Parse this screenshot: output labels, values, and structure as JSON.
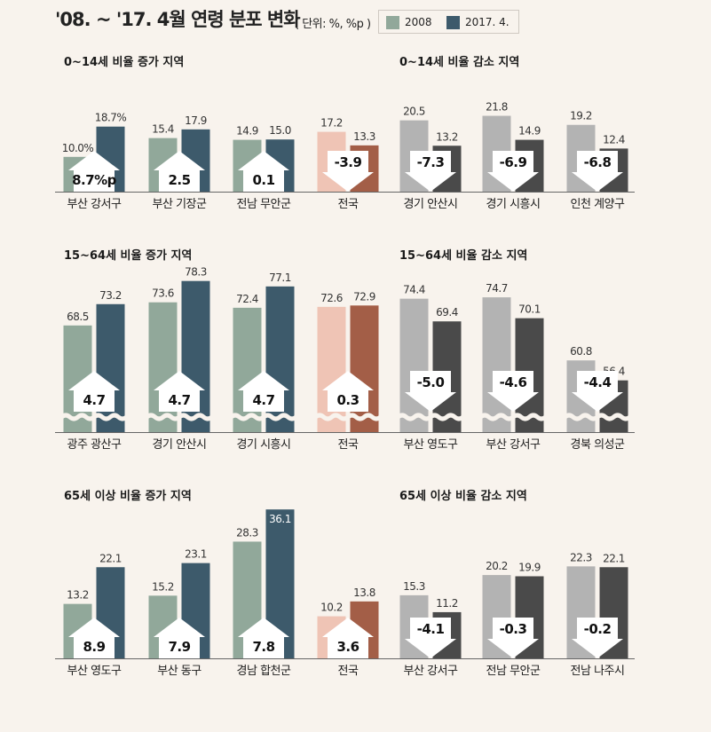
{
  "header": {
    "title": "'08. ~ '17. 4월 연령 분포 변화",
    "unit": "( 단위: %, %p )"
  },
  "legend": [
    {
      "label": "2008",
      "color": "#91a89a"
    },
    {
      "label": "2017. 4.",
      "color": "#3d5a6b"
    }
  ],
  "colors": {
    "increase_2008": "#91a89a",
    "increase_2017": "#3d5a6b",
    "national_2008": "#efc4b5",
    "national_2017": "#a35e47",
    "decrease_2008": "#b3b3b3",
    "decrease_2017": "#4a4a4a"
  },
  "chart_data": [
    {
      "type": "bar",
      "row_titles": [
        "0~14세 비율 증가 지역",
        "0~14세 비율 감소 지역"
      ],
      "series": [
        {
          "name": "2008"
        },
        {
          "name": "2017. 4."
        }
      ],
      "categories": [
        "부산 강서구",
        "부산 기장군",
        "전남 무안군",
        "전국",
        "경기 안산시",
        "경기 시흥시",
        "인천 계양구"
      ],
      "groups": [
        "increase",
        "increase",
        "increase",
        "national",
        "decrease",
        "decrease",
        "decrease"
      ],
      "values_2008": [
        10.0,
        15.4,
        14.9,
        17.2,
        20.5,
        21.8,
        19.2
      ],
      "values_2017": [
        18.7,
        17.9,
        15.0,
        13.3,
        13.2,
        14.9,
        12.4
      ],
      "labels_2008": [
        "10.0%",
        "15.4",
        "14.9",
        "17.2",
        "20.5",
        "21.8",
        "19.2"
      ],
      "labels_2017": [
        "18.7%",
        "17.9",
        "15.0",
        "13.3",
        "13.2",
        "14.9",
        "12.4"
      ],
      "change": [
        "8.7%p",
        "2.5",
        "0.1",
        "-3.9",
        "-7.3",
        "-6.9",
        "-6.8"
      ],
      "direction": [
        "up",
        "up",
        "up",
        "down",
        "down",
        "down",
        "down"
      ],
      "axis_break": false,
      "ylim": [
        0,
        25
      ]
    },
    {
      "type": "bar",
      "row_titles": [
        "15~64세 비율 증가 지역",
        "15~64세 비율 감소 지역"
      ],
      "series": [
        {
          "name": "2008"
        },
        {
          "name": "2017. 4."
        }
      ],
      "categories": [
        "광주 광산구",
        "경기 안산시",
        "경기 시흥시",
        "전국",
        "부산 영도구",
        "부산 강서구",
        "경북 의성군"
      ],
      "groups": [
        "increase",
        "increase",
        "increase",
        "national",
        "decrease",
        "decrease",
        "decrease"
      ],
      "values_2008": [
        68.5,
        73.6,
        72.4,
        72.6,
        74.4,
        74.7,
        60.8
      ],
      "values_2017": [
        73.2,
        78.3,
        77.1,
        72.9,
        69.4,
        70.1,
        56.4
      ],
      "labels_2008": [
        "68.5",
        "73.6",
        "72.4",
        "72.6",
        "74.4",
        "74.7",
        "60.8"
      ],
      "labels_2017": [
        "73.2",
        "78.3",
        "77.1",
        "72.9",
        "69.4",
        "70.1",
        "56.4"
      ],
      "change": [
        "4.7",
        "4.7",
        "4.7",
        "0.3",
        "-5.0",
        "-4.6",
        "-4.4"
      ],
      "direction": [
        "up",
        "up",
        "up",
        "up",
        "down",
        "down",
        "down"
      ],
      "axis_break": true,
      "ylim": [
        45,
        80
      ]
    },
    {
      "type": "bar",
      "row_titles": [
        "65세 이상 비율 증가 지역",
        "65세 이상 비율 감소 지역"
      ],
      "series": [
        {
          "name": "2008"
        },
        {
          "name": "2017. 4."
        }
      ],
      "categories": [
        "부산 영도구",
        "부산 동구",
        "경남 합천군",
        "전국",
        "부산 강서구",
        "전남 무안군",
        "전남 나주시"
      ],
      "groups": [
        "increase",
        "increase",
        "increase",
        "national",
        "decrease",
        "decrease",
        "decrease"
      ],
      "values_2008": [
        13.2,
        15.2,
        28.3,
        10.2,
        15.3,
        20.2,
        22.3
      ],
      "values_2017": [
        22.1,
        23.1,
        36.1,
        13.8,
        11.2,
        19.9,
        22.1
      ],
      "labels_2008": [
        "13.2",
        "15.2",
        "28.3",
        "10.2",
        "15.3",
        "20.2",
        "22.3"
      ],
      "labels_2017": [
        "22.1",
        "23.1",
        "36.1",
        "13.8",
        "11.2",
        "19.9",
        "22.1"
      ],
      "change": [
        "8.9",
        "7.9",
        "7.8",
        "3.6",
        "-4.1",
        "-0.3",
        "-0.2"
      ],
      "direction": [
        "up",
        "up",
        "up",
        "up",
        "down",
        "down",
        "down"
      ],
      "axis_break": false,
      "ylim": [
        0,
        37
      ]
    }
  ]
}
